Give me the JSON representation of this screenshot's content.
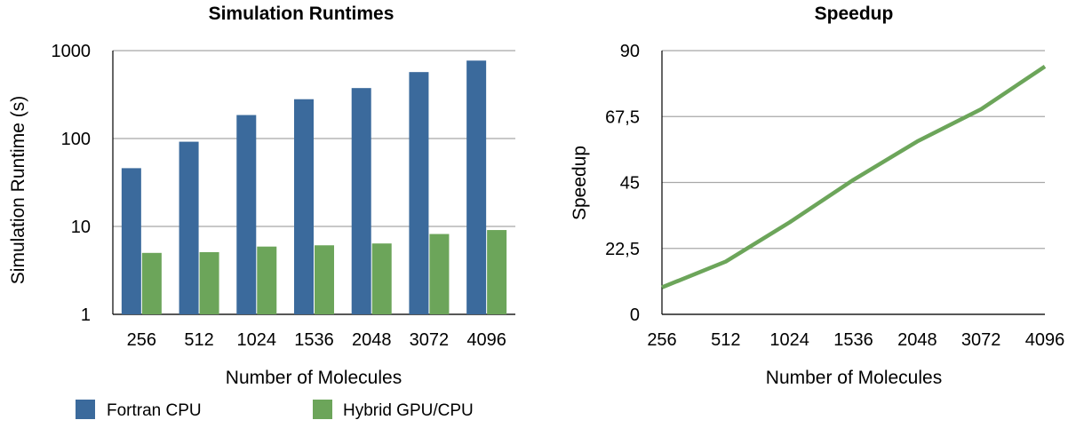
{
  "chart_data": [
    {
      "type": "bar",
      "title": "Simulation Runtimes",
      "xlabel": "Number of Molecules",
      "ylabel": "Simulation Runtime (s)",
      "yscale": "log",
      "ylim": [
        1,
        1000
      ],
      "yticks": [
        "1",
        "10",
        "100",
        "1000"
      ],
      "grid": true,
      "legend": "bottom",
      "categories": [
        "256",
        "512",
        "1024",
        "1536",
        "2048",
        "3072",
        "4096"
      ],
      "series": [
        {
          "name": "Fortran CPU",
          "color": "#3b6a9c",
          "values": [
            46,
            92,
            185,
            280,
            375,
            570,
            770
          ]
        },
        {
          "name": "Hybrid GPU/CPU",
          "color": "#6ca55a",
          "values": [
            5.0,
            5.1,
            5.9,
            6.1,
            6.4,
            8.2,
            9.1
          ]
        }
      ]
    },
    {
      "type": "line",
      "title": "Speedup",
      "xlabel": "Number of Molecules",
      "ylabel": "Speedup",
      "ylim": [
        0,
        90
      ],
      "yticks": [
        "0",
        "22,5",
        "45",
        "67,5",
        "90"
      ],
      "grid": true,
      "categories": [
        "256",
        "512",
        "1024",
        "1536",
        "2048",
        "3072",
        "4096"
      ],
      "series": [
        {
          "color": "#6ca55a",
          "values": [
            9.2,
            18.0,
            31.4,
            45.9,
            59.0,
            70.0,
            84.6
          ]
        }
      ]
    }
  ]
}
